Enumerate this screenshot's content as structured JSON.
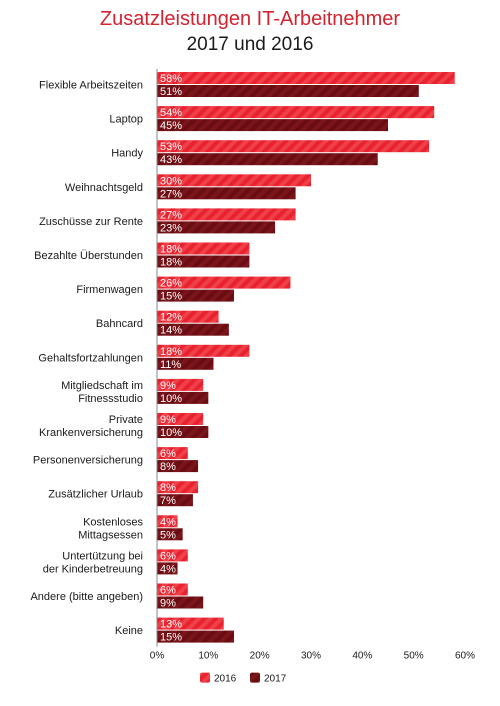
{
  "chart_data": {
    "type": "bar",
    "orientation": "horizontal",
    "title": "Zusatzleistungen IT-Arbeitnehmer",
    "subtitle": "2017 und 2016",
    "categories": [
      [
        "Flexible Arbeitszeiten"
      ],
      [
        "Laptop"
      ],
      [
        "Handy"
      ],
      [
        "Weihnachtsgeld"
      ],
      [
        "Zuschüsse zur Rente"
      ],
      [
        "Bezahlte Überstunden"
      ],
      [
        "Firmenwagen"
      ],
      [
        "Bahncard"
      ],
      [
        "Gehaltsfortzahlungen"
      ],
      [
        "Mitgliedschaft im",
        "Fitnessstudio"
      ],
      [
        "Private",
        "Krankenversicherung"
      ],
      [
        "Personenversicherung"
      ],
      [
        "Zusätzlicher Urlaub"
      ],
      [
        "Kostenloses",
        "Mittagsessen"
      ],
      [
        "Untertützung bei",
        "der Kinderbetreuung"
      ],
      [
        "Andere (bitte angeben)"
      ],
      [
        "Keine"
      ]
    ],
    "series": [
      {
        "name": "2016",
        "color": "#e8222e",
        "values": [
          58,
          54,
          53,
          30,
          27,
          18,
          26,
          12,
          18,
          9,
          9,
          6,
          8,
          4,
          6,
          6,
          13
        ],
        "labels": [
          "58%",
          "54%",
          "53%",
          "30%",
          "27%",
          "18%",
          "26%",
          "12%",
          "18%",
          "9%",
          "9%",
          "6%",
          "8%",
          "4%",
          "6%",
          "6%",
          "13%"
        ]
      },
      {
        "name": "2017",
        "color": "#6a0d12",
        "values": [
          51,
          45,
          43,
          27,
          23,
          18,
          15,
          14,
          11,
          10,
          10,
          8,
          7,
          5,
          4,
          9,
          15
        ],
        "labels": [
          "51%",
          "45%",
          "43%",
          "27%",
          "23%",
          "18%",
          "15%",
          "14%",
          "11%",
          "10%",
          "10%",
          "8%",
          "7%",
          "5%",
          "4%",
          "9%",
          "15%"
        ]
      }
    ],
    "xlim": [
      0,
      60
    ],
    "x_ticks": [
      0,
      10,
      20,
      30,
      40,
      50,
      60
    ],
    "x_tick_labels": [
      "0%",
      "10%",
      "20%",
      "30%",
      "40%",
      "50%",
      "60%"
    ],
    "grid": false,
    "legend": {
      "position": "bottom-center",
      "entries": [
        "2016",
        "2017"
      ]
    }
  }
}
